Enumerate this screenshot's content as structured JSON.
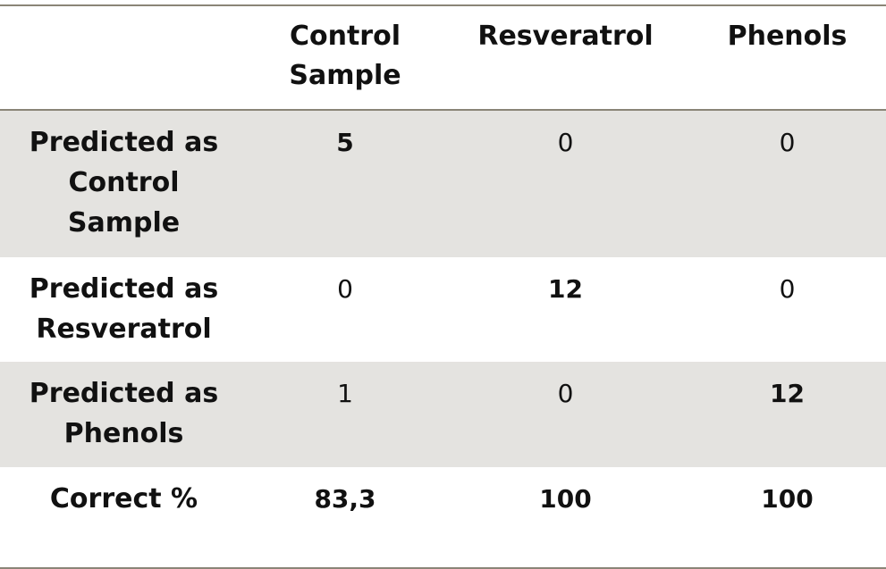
{
  "table": {
    "columns": [
      "",
      "Control\nSample",
      "Resveratrol",
      "Phenols"
    ],
    "rows": [
      {
        "label": "Predicted as\nControl\nSample",
        "values": [
          "5",
          "0",
          "0"
        ]
      },
      {
        "label": "Predicted as\nResveratrol",
        "values": [
          "0",
          "12",
          "0"
        ]
      },
      {
        "label": "Predicted as\nPhenols",
        "values": [
          "1",
          "0",
          "12"
        ]
      },
      {
        "label": "Correct %",
        "values": [
          "83,3",
          "100",
          "100"
        ]
      }
    ]
  }
}
